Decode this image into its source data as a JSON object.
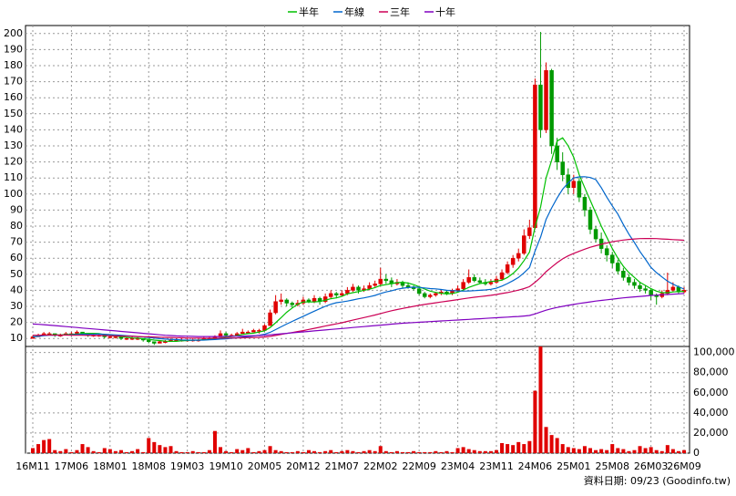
{
  "chart_data": {
    "type": "candlestick",
    "categories": [
      "16M11",
      null,
      null,
      null,
      null,
      null,
      null,
      "17M06",
      null,
      null,
      null,
      null,
      null,
      null,
      "18M01",
      null,
      null,
      null,
      null,
      null,
      null,
      "18M08",
      null,
      null,
      null,
      null,
      null,
      null,
      "19M03",
      null,
      null,
      null,
      null,
      null,
      null,
      "19M10",
      null,
      null,
      null,
      null,
      null,
      null,
      "20M05",
      null,
      null,
      null,
      null,
      null,
      null,
      "20M12",
      null,
      null,
      null,
      null,
      null,
      null,
      "21M07",
      null,
      null,
      null,
      null,
      null,
      null,
      "22M02",
      null,
      null,
      null,
      null,
      null,
      null,
      "22M09",
      null,
      null,
      null,
      null,
      null,
      null,
      "23M04",
      null,
      null,
      null,
      null,
      null,
      null,
      "23M11",
      null,
      null,
      null,
      null,
      null,
      null,
      "24M06",
      null,
      null,
      null,
      null,
      null,
      null,
      "25M01",
      null,
      null,
      null,
      null,
      null,
      null,
      "25M08",
      null,
      null,
      null,
      null,
      null,
      null,
      "26M03",
      null,
      null,
      null,
      null,
      null,
      "26M09"
    ],
    "ohlc": [
      [
        10,
        12,
        10,
        11
      ],
      [
        11,
        13,
        11,
        12
      ],
      [
        12,
        14,
        12,
        13
      ],
      [
        13,
        14,
        12,
        13
      ],
      [
        13,
        13,
        11,
        12
      ],
      [
        12,
        13,
        11,
        12
      ],
      [
        12,
        14,
        12,
        13
      ],
      [
        13,
        14,
        12,
        13
      ],
      [
        13,
        15,
        13,
        14
      ],
      [
        14,
        14,
        12,
        13
      ],
      [
        13,
        13,
        11,
        12
      ],
      [
        12,
        13,
        11,
        12
      ],
      [
        12,
        13,
        11,
        12
      ],
      [
        12,
        12,
        10,
        11
      ],
      [
        11,
        12,
        10,
        11
      ],
      [
        11,
        12,
        10,
        11
      ],
      [
        11,
        11,
        9,
        10
      ],
      [
        10,
        11,
        9,
        10
      ],
      [
        10,
        11,
        9,
        10
      ],
      [
        10,
        11,
        9,
        10
      ],
      [
        10,
        10,
        8,
        9
      ],
      [
        9,
        9,
        7,
        8
      ],
      [
        8,
        8,
        6,
        7
      ],
      [
        7,
        9,
        7,
        8
      ],
      [
        8,
        9,
        7,
        8
      ],
      [
        8,
        10,
        8,
        9
      ],
      [
        9,
        10,
        8,
        9
      ],
      [
        9,
        10,
        8,
        9
      ],
      [
        9,
        10,
        8,
        9
      ],
      [
        9,
        10,
        8,
        9
      ],
      [
        9,
        10,
        8,
        9
      ],
      [
        9,
        11,
        9,
        10
      ],
      [
        10,
        11,
        9,
        10
      ],
      [
        10,
        12,
        10,
        11
      ],
      [
        11,
        15,
        11,
        13
      ],
      [
        13,
        14,
        11,
        12
      ],
      [
        12,
        13,
        11,
        12
      ],
      [
        12,
        14,
        12,
        13
      ],
      [
        13,
        16,
        13,
        14
      ],
      [
        14,
        15,
        13,
        14
      ],
      [
        14,
        16,
        14,
        15
      ],
      [
        15,
        16,
        13,
        15
      ],
      [
        15,
        19,
        15,
        18
      ],
      [
        18,
        28,
        18,
        26
      ],
      [
        26,
        37,
        25,
        33
      ],
      [
        33,
        38,
        31,
        34
      ],
      [
        34,
        35,
        30,
        32
      ],
      [
        32,
        33,
        29,
        31
      ],
      [
        31,
        34,
        30,
        32
      ],
      [
        32,
        36,
        31,
        34
      ],
      [
        34,
        35,
        32,
        33
      ],
      [
        33,
        37,
        32,
        35
      ],
      [
        35,
        36,
        31,
        33
      ],
      [
        33,
        38,
        32,
        36
      ],
      [
        36,
        40,
        35,
        38
      ],
      [
        38,
        39,
        35,
        37
      ],
      [
        37,
        40,
        36,
        38
      ],
      [
        38,
        42,
        37,
        40
      ],
      [
        40,
        44,
        39,
        42
      ],
      [
        42,
        43,
        38,
        40
      ],
      [
        40,
        43,
        39,
        41
      ],
      [
        41,
        45,
        40,
        43
      ],
      [
        43,
        46,
        42,
        44
      ],
      [
        44,
        54,
        43,
        47
      ],
      [
        47,
        50,
        44,
        46
      ],
      [
        46,
        48,
        42,
        44
      ],
      [
        44,
        47,
        43,
        45
      ],
      [
        45,
        46,
        41,
        43
      ],
      [
        43,
        45,
        41,
        42
      ],
      [
        42,
        43,
        40,
        41
      ],
      [
        41,
        42,
        37,
        38
      ],
      [
        38,
        39,
        35,
        36
      ],
      [
        36,
        38,
        35,
        37
      ],
      [
        37,
        39,
        36,
        38
      ],
      [
        38,
        40,
        37,
        39
      ],
      [
        39,
        40,
        37,
        38
      ],
      [
        38,
        41,
        37,
        40
      ],
      [
        40,
        43,
        39,
        41
      ],
      [
        41,
        47,
        40,
        45
      ],
      [
        45,
        53,
        44,
        48
      ],
      [
        48,
        50,
        45,
        46
      ],
      [
        46,
        48,
        44,
        45
      ],
      [
        45,
        47,
        43,
        44
      ],
      [
        44,
        47,
        43,
        45
      ],
      [
        45,
        49,
        44,
        47
      ],
      [
        47,
        53,
        46,
        51
      ],
      [
        51,
        58,
        50,
        56
      ],
      [
        56,
        62,
        54,
        60
      ],
      [
        60,
        66,
        58,
        63
      ],
      [
        63,
        78,
        62,
        74
      ],
      [
        74,
        84,
        72,
        79
      ],
      [
        79,
        172,
        78,
        168
      ],
      [
        168,
        201,
        135,
        140
      ],
      [
        140,
        182,
        138,
        177
      ],
      [
        177,
        178,
        125,
        130
      ],
      [
        130,
        135,
        115,
        120
      ],
      [
        120,
        126,
        108,
        112
      ],
      [
        112,
        116,
        100,
        104
      ],
      [
        104,
        112,
        100,
        108
      ],
      [
        108,
        110,
        95,
        98
      ],
      [
        98,
        100,
        86,
        90
      ],
      [
        90,
        92,
        75,
        78
      ],
      [
        78,
        80,
        70,
        72
      ],
      [
        72,
        76,
        63,
        66
      ],
      [
        66,
        68,
        58,
        62
      ],
      [
        62,
        64,
        54,
        57
      ],
      [
        57,
        59,
        50,
        52
      ],
      [
        52,
        54,
        46,
        48
      ],
      [
        48,
        50,
        43,
        45
      ],
      [
        45,
        47,
        41,
        43
      ],
      [
        43,
        45,
        39,
        41
      ],
      [
        41,
        43,
        38,
        40
      ],
      [
        40,
        41,
        34,
        37
      ],
      [
        37,
        38,
        31,
        36
      ],
      [
        36,
        40,
        35,
        38
      ],
      [
        38,
        51,
        37,
        40
      ],
      [
        40,
        45,
        39,
        42
      ],
      [
        42,
        43,
        38,
        39
      ],
      [
        39,
        42,
        38,
        40
      ]
    ],
    "up_color": "#e00000",
    "down_color": "#009900",
    "ylim": [
      5,
      205
    ],
    "yticks": [
      10,
      20,
      30,
      40,
      50,
      60,
      70,
      80,
      90,
      100,
      110,
      120,
      130,
      140,
      150,
      160,
      170,
      180,
      190,
      200
    ],
    "grid": true,
    "series": [
      {
        "name": "半年",
        "color": "#00c000",
        "values": [
          11,
          11.5,
          12,
          12.3,
          12.2,
          12.2,
          12.5,
          12.5,
          12.8,
          13,
          13.2,
          13.2,
          13,
          12.3,
          11.8,
          11.5,
          11.2,
          10.7,
          10.3,
          10.2,
          9.8,
          9.5,
          9,
          8.7,
          8.3,
          8.2,
          8.2,
          8.5,
          8.7,
          9,
          9,
          9.2,
          9.3,
          9.7,
          10.3,
          10.8,
          11.2,
          11.8,
          12.5,
          13,
          13.3,
          14,
          14.8,
          16.8,
          19.8,
          23,
          26.3,
          29,
          31.3,
          32.7,
          32.7,
          32.8,
          33,
          33.8,
          34.8,
          35.3,
          36.2,
          37.8,
          38.5,
          39.2,
          40,
          40.7,
          41.7,
          43,
          43.5,
          44.2,
          44.8,
          45,
          44.5,
          43.5,
          42.2,
          40.8,
          39.5,
          38.7,
          38.2,
          37.7,
          38,
          38.8,
          40.2,
          41.8,
          43,
          44.2,
          44.8,
          45.5,
          45.8,
          46.3,
          48,
          50.5,
          53.8,
          58.5,
          63.8,
          79.5,
          92,
          110,
          121,
          133,
          135,
          130,
          123,
          112,
          104,
          96,
          88,
          80,
          73,
          66,
          60,
          55,
          51,
          48,
          45,
          43,
          41,
          39.5,
          38.5,
          38.5,
          39,
          39.2,
          39.3
        ]
      },
      {
        "name": "年線",
        "color": "#0066cc",
        "values": [
          11,
          11.3,
          11.7,
          12,
          12,
          12,
          12.2,
          12.3,
          12.5,
          12.6,
          12.6,
          12.6,
          12.7,
          12.6,
          12.4,
          12.2,
          12,
          11.7,
          11.5,
          11.2,
          10.9,
          10.6,
          10.2,
          9.9,
          9.6,
          9.4,
          9.3,
          9.1,
          9,
          8.9,
          8.9,
          9,
          9.2,
          9.3,
          9.6,
          9.8,
          10.1,
          10.4,
          10.8,
          11.2,
          11.6,
          12,
          12.6,
          13.8,
          15.5,
          17.3,
          19,
          20.6,
          22.2,
          23.8,
          25.4,
          27,
          28.5,
          30,
          31.3,
          32.3,
          32.7,
          33.3,
          34,
          34.7,
          35.3,
          36,
          36.8,
          38,
          39,
          39.7,
          40.7,
          41.3,
          41.7,
          42,
          41.8,
          41.5,
          41.1,
          40.9,
          40.5,
          40,
          39.8,
          39.6,
          39.5,
          39.6,
          39.8,
          40,
          40.2,
          40.6,
          41.3,
          42.6,
          44.2,
          46,
          48,
          50.9,
          54.2,
          64.5,
          73.2,
          84.2,
          91.3,
          97.5,
          103,
          107,
          110,
          110.7,
          110.8,
          110.3,
          109,
          104,
          98,
          92.6,
          87.5,
          81,
          75,
          69.8,
          64.2,
          59.3,
          54.3,
          51,
          48.3,
          45.7,
          43.8,
          42.2,
          40.8
        ]
      },
      {
        "name": "三年",
        "color": "#cc0055",
        "values": [
          12,
          12,
          12.1,
          12.1,
          12.1,
          12.1,
          12.1,
          12,
          12,
          12,
          11.9,
          11.9,
          11.8,
          11.8,
          11.7,
          11.6,
          11.5,
          11.4,
          11.3,
          11.2,
          11.1,
          11,
          10.9,
          10.8,
          10.7,
          10.6,
          10.5,
          10.4,
          10.3,
          10.2,
          10.2,
          10.1,
          10.1,
          10.1,
          10.2,
          10.2,
          10.3,
          10.3,
          10.4,
          10.5,
          10.6,
          10.7,
          10.9,
          11.3,
          11.9,
          12.5,
          13.1,
          13.7,
          14.3,
          14.9,
          15.6,
          16.3,
          17,
          17.7,
          18.4,
          19.1,
          19.8,
          20.6,
          21.4,
          22.2,
          23,
          23.8,
          24.6,
          25.5,
          26.4,
          27.3,
          28,
          28.7,
          29.4,
          30,
          30.6,
          31.2,
          31.7,
          32.2,
          32.7,
          33.2,
          33.7,
          34.2,
          34.7,
          35.2,
          35.7,
          36.1,
          36.5,
          36.9,
          37.4,
          38,
          38.6,
          39.3,
          40.1,
          41.1,
          42.3,
          45,
          48,
          51.6,
          54.5,
          57.2,
          59.6,
          61.5,
          63,
          64.3,
          65.6,
          66.8,
          67.8,
          68.7,
          69.5,
          70.2,
          70.8,
          71.3,
          71.7,
          72,
          72.2,
          72.3,
          72.3,
          72.2,
          72,
          71.8,
          71.6,
          71.4,
          71.2
        ]
      },
      {
        "name": "十年",
        "color": "#8000c0",
        "values": [
          19,
          18.8,
          18.6,
          18.3,
          18,
          17.7,
          17.4,
          17.1,
          16.8,
          16.5,
          16.2,
          15.9,
          15.6,
          15.3,
          15,
          14.7,
          14.4,
          14.1,
          13.8,
          13.5,
          13.2,
          12.9,
          12.6,
          12.3,
          12,
          11.8,
          11.6,
          11.5,
          11.4,
          11.3,
          11.2,
          11.2,
          11.2,
          11.2,
          11.2,
          11.3,
          11.3,
          11.4,
          11.5,
          11.6,
          11.7,
          11.8,
          12,
          12.3,
          12.6,
          12.9,
          13.2,
          13.5,
          13.8,
          14.1,
          14.4,
          14.7,
          15,
          15.3,
          15.6,
          15.9,
          16.2,
          16.5,
          16.8,
          17.1,
          17.4,
          17.7,
          18,
          18.3,
          18.6,
          18.9,
          19.2,
          19.5,
          19.7,
          19.9,
          20.1,
          20.3,
          20.5,
          20.7,
          20.9,
          21.1,
          21.3,
          21.5,
          21.7,
          21.9,
          22.1,
          22.3,
          22.5,
          22.7,
          22.9,
          23.1,
          23.3,
          23.5,
          23.7,
          24,
          24.3,
          25.3,
          26.5,
          27.6,
          28.5,
          29.3,
          30,
          30.6,
          31.2,
          31.8,
          32.3,
          32.8,
          33.3,
          33.7,
          34.1,
          34.5,
          34.9,
          35.3,
          35.6,
          35.9,
          36.2,
          36.5,
          36.8,
          37,
          37.2,
          37.4,
          37.6,
          37.8,
          38
        ]
      }
    ],
    "volume": {
      "color": "#e00000",
      "axis": "y2",
      "values": [
        5000,
        9000,
        13000,
        14000,
        3000,
        2000,
        4000,
        1000,
        3000,
        9000,
        6000,
        2000,
        1000,
        5000,
        4000,
        2000,
        3000,
        1000,
        2000,
        4000,
        1000,
        15000,
        11000,
        8000,
        6000,
        7000,
        2000,
        1000,
        1000,
        2000,
        1000,
        1000,
        3000,
        22000,
        6000,
        2000,
        1000,
        4000,
        3000,
        5000,
        1000,
        2000,
        3000,
        7000,
        3000,
        2000,
        1000,
        1000,
        2000,
        1000,
        3000,
        2000,
        1000,
        2000,
        3000,
        1000,
        2000,
        3000,
        2000,
        1000,
        2000,
        3000,
        2000,
        7000,
        2000,
        1000,
        2000,
        1000,
        1000,
        2000,
        1000,
        1000,
        1000,
        2000,
        1000,
        2000,
        1000,
        5000,
        6000,
        4000,
        3000,
        2000,
        2000,
        2000,
        3000,
        10000,
        9000,
        8000,
        11000,
        9000,
        12000,
        62000,
        106000,
        26000,
        18000,
        15000,
        9000,
        6000,
        5000,
        4000,
        7000,
        5000,
        3000,
        4000,
        3000,
        9000,
        5000,
        4000,
        2000,
        3000,
        7000,
        5000,
        6000,
        3000,
        2000,
        8000,
        4000,
        2000,
        3000
      ]
    },
    "y2lim": [
      0,
      106000
    ],
    "y2ticks": [
      0,
      {
        "value": 20000,
        "label": "20,000"
      },
      {
        "value": 40000,
        "label": "40,000"
      },
      {
        "value": 60000,
        "label": "60,000"
      },
      {
        "value": 80000,
        "label": "80,000"
      },
      {
        "value": 100000,
        "label": "100,000"
      }
    ],
    "footnote": "資料日期: 09/23  (Goodinfo.tw)"
  }
}
